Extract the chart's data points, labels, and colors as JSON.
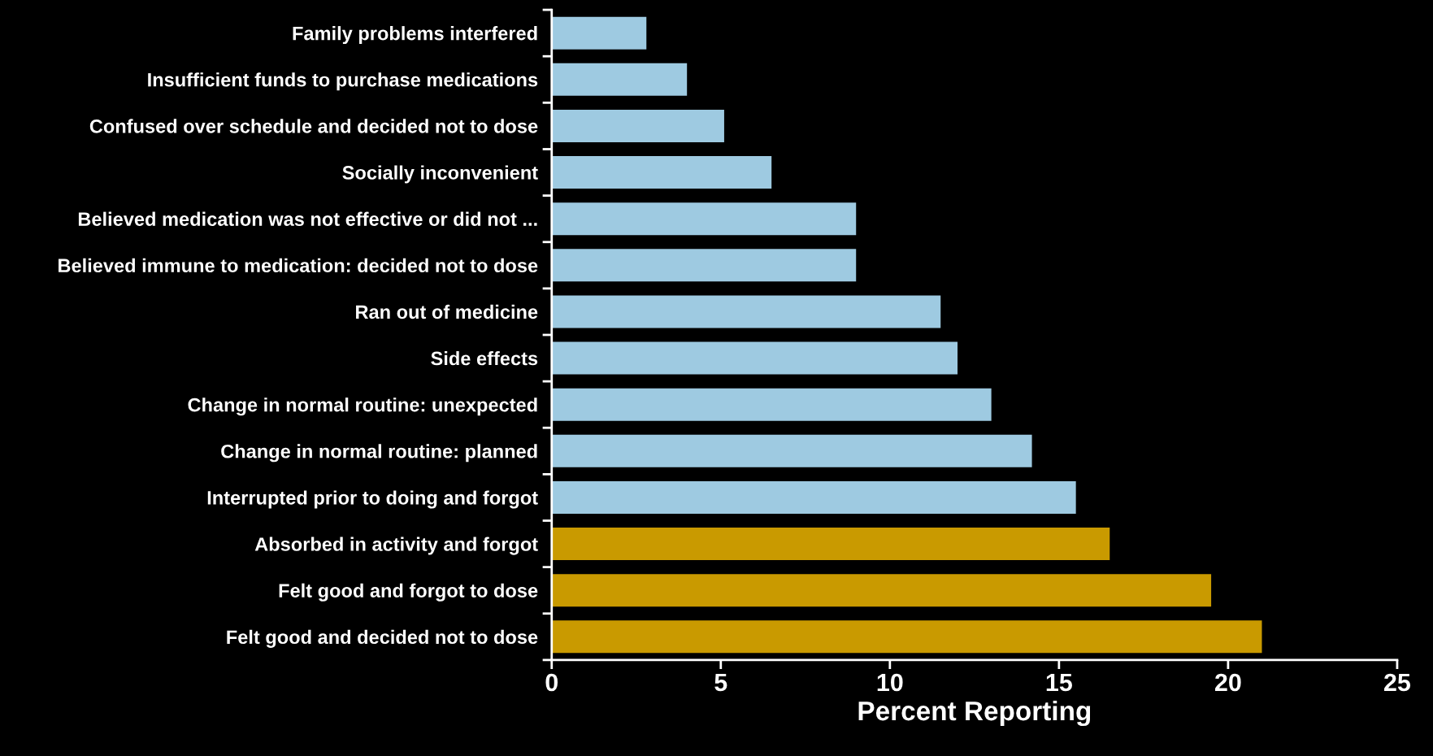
{
  "chart_data": {
    "type": "bar",
    "orientation": "horizontal",
    "xlabel": "Percent Reporting",
    "categories": [
      "Family problems interfered",
      "Insufficient funds to purchase medications",
      "Confused over schedule and decided not to dose",
      "Socially inconvenient",
      "Believed medication was not effective or did not ...",
      "Believed immune to medication: decided not to dose",
      "Ran out of medicine",
      "Side effects",
      "Change in normal routine: unexpected",
      "Change in normal routine: planned",
      "Interrupted prior to doing and forgot",
      "Absorbed in activity and forgot",
      "Felt good and forgot to dose",
      "Felt good and decided not to dose"
    ],
    "values": [
      2.8,
      4.0,
      5.1,
      6.5,
      9.0,
      9.0,
      11.5,
      12.0,
      13.0,
      14.2,
      15.5,
      16.5,
      19.5,
      21.0
    ],
    "colors": [
      "#9ecae1",
      "#9ecae1",
      "#9ecae1",
      "#9ecae1",
      "#9ecae1",
      "#9ecae1",
      "#9ecae1",
      "#9ecae1",
      "#9ecae1",
      "#9ecae1",
      "#9ecae1",
      "#c99a00",
      "#c99a00",
      "#c99a00"
    ],
    "xlim": [
      0,
      25
    ],
    "xticks": [
      0,
      5,
      10,
      15,
      20,
      25
    ],
    "grid": false
  }
}
